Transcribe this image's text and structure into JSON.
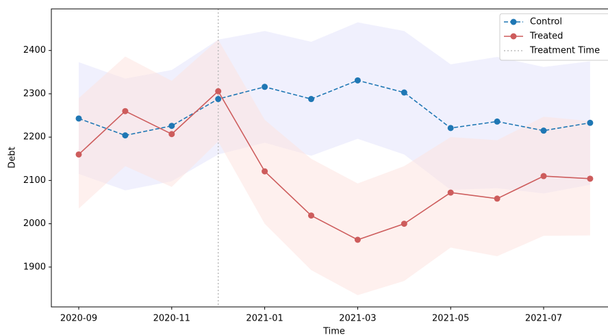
{
  "chart_data": {
    "type": "line",
    "xlabel": "Time",
    "ylabel": "Debt",
    "x": [
      "2020-09",
      "2020-10",
      "2020-11",
      "2020-12",
      "2021-01",
      "2021-02",
      "2021-03",
      "2021-04",
      "2021-05",
      "2021-06",
      "2021-07",
      "2021-08"
    ],
    "xticks": [
      "2020-09",
      "2020-11",
      "2021-01",
      "2021-03",
      "2021-05",
      "2021-07"
    ],
    "ylim": [
      1808,
      2496
    ],
    "yticks": [
      1900,
      2000,
      2100,
      2200,
      2300,
      2400
    ],
    "series": [
      {
        "name": "Control",
        "color": "#1f77b4",
        "dash": true,
        "values": [
          2243,
          2204,
          2226,
          2288,
          2316,
          2288,
          2331,
          2303,
          2221,
          2236,
          2215,
          2233
        ],
        "band_color": "#e3e3fb",
        "upper": [
          2373,
          2335,
          2355,
          2425,
          2445,
          2420,
          2465,
          2445,
          2368,
          2385,
          2362,
          2375
        ],
        "lower": [
          2115,
          2077,
          2098,
          2160,
          2187,
          2157,
          2196,
          2160,
          2078,
          2082,
          2070,
          2090
        ]
      },
      {
        "name": "Treated",
        "color": "#cd5c5c",
        "dash": false,
        "values": [
          2160,
          2260,
          2207,
          2306,
          2121,
          2019,
          1963,
          2000,
          2072,
          2058,
          2110,
          2104
        ],
        "band_color": "#fde3e0",
        "upper": [
          2290,
          2386,
          2330,
          2425,
          2240,
          2150,
          2093,
          2133,
          2200,
          2193,
          2247,
          2237
        ],
        "lower": [
          2035,
          2133,
          2085,
          2190,
          2000,
          1893,
          1835,
          1868,
          1945,
          1925,
          1972,
          1973
        ]
      }
    ],
    "vline": {
      "x": "2020-12",
      "label": "Treatment Time",
      "color": "#bbbbbb"
    },
    "legend": "upper right"
  }
}
